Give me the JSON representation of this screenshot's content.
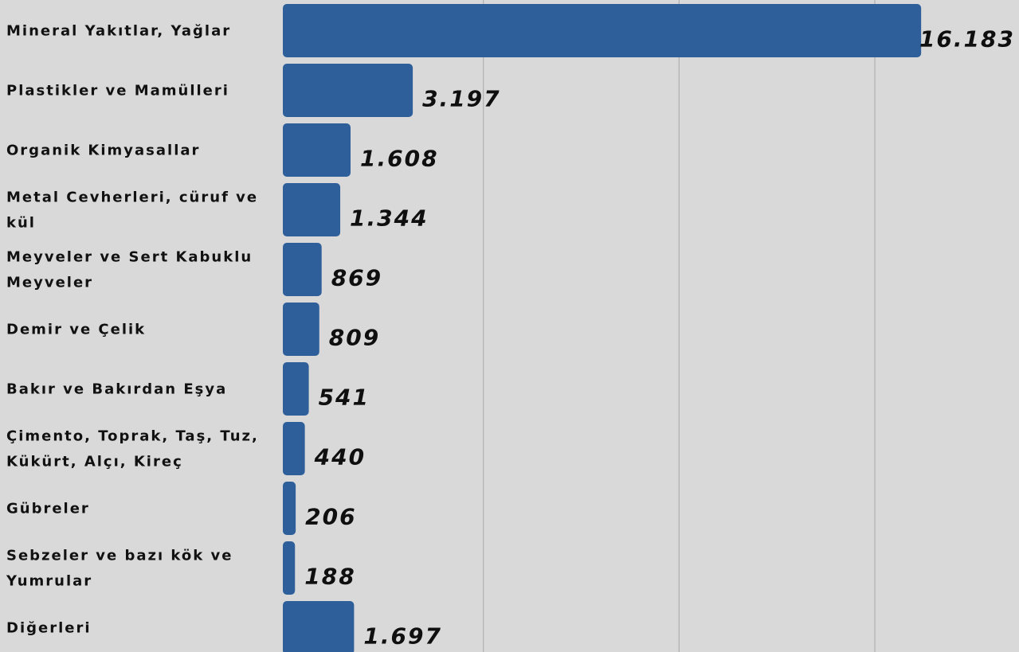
{
  "chart_data": {
    "type": "bar",
    "orientation": "horizontal",
    "categories": [
      [
        "Mineral Yakıtlar, Yağlar"
      ],
      [
        "Plastikler ve Mamülleri"
      ],
      [
        "Organik Kimyasallar"
      ],
      [
        "Metal Cevherleri, cüruf ve",
        "kül"
      ],
      [
        "Meyveler ve Sert Kabuklu",
        "Meyveler"
      ],
      [
        "Demir ve Çelik"
      ],
      [
        "Bakır ve Bakırdan Eşya"
      ],
      [
        "Çimento, Toprak, Taş, Tuz,",
        "Kükürt, Alçı, Kireç"
      ],
      [
        "Gübreler"
      ],
      [
        "Sebzeler ve bazı kök ve",
        "Yumrular"
      ],
      [
        "Diğerleri"
      ]
    ],
    "values": [
      16183,
      3197,
      1608,
      1344,
      869,
      809,
      541,
      440,
      206,
      188,
      1697
    ],
    "value_labels": [
      "16.183",
      "3.197",
      "1.608",
      "1.344",
      "869",
      "809",
      "541",
      "440",
      "206",
      "188",
      "1.697"
    ],
    "xlim": [
      0,
      16200
    ],
    "gridlines": [
      5000,
      10000,
      15000
    ],
    "grid": true,
    "colors": {
      "bar": "#2e5f9a",
      "plot_background": "#d9d9d9",
      "gridline": "#b0b0b0",
      "text": "#111111"
    }
  }
}
